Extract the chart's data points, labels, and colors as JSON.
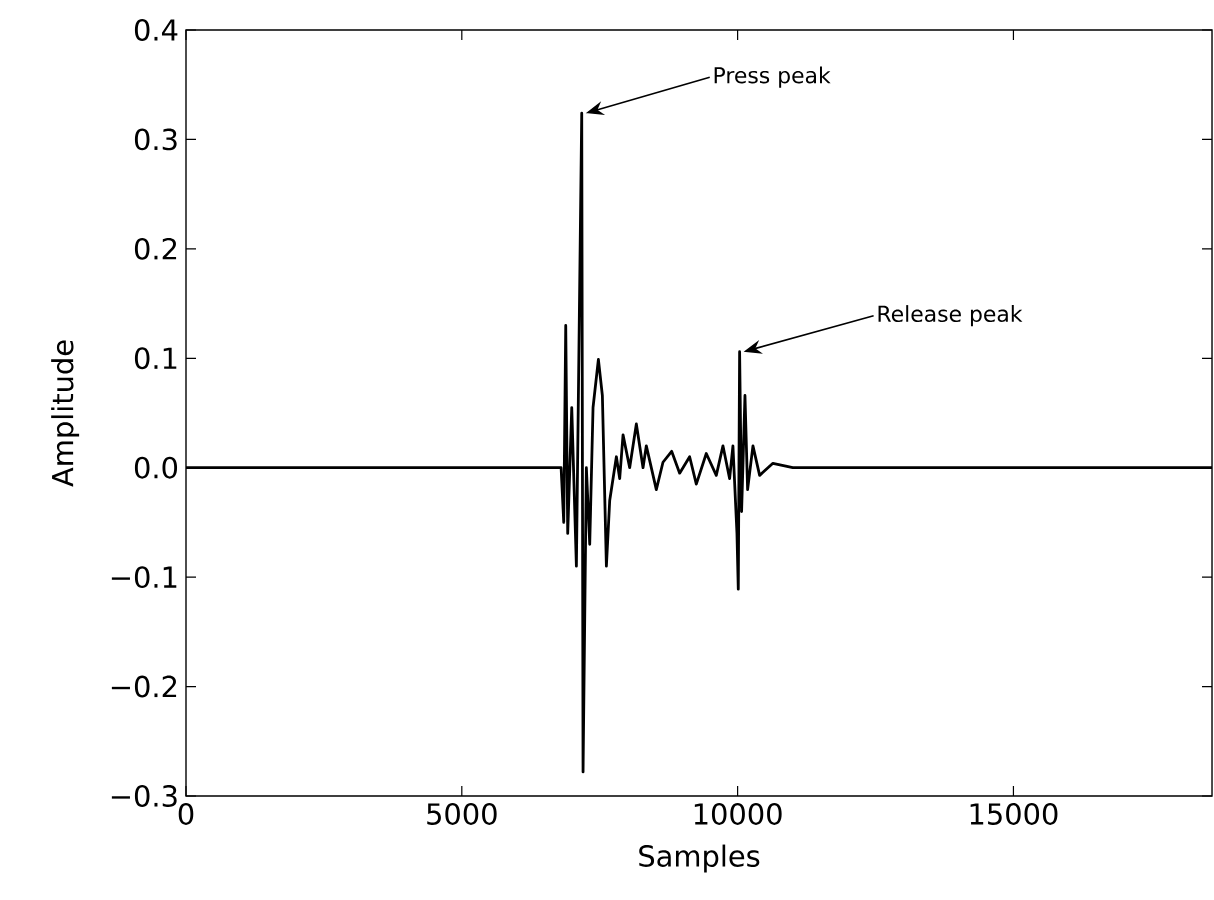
{
  "chart_data": {
    "type": "line",
    "xlabel": "Samples",
    "ylabel": "Amplitude",
    "annotations": [
      {
        "text": "Press peak",
        "x": 7174,
        "y": 0.324
      },
      {
        "text": "Release peak",
        "x": 10036,
        "y": 0.106
      }
    ],
    "series": [
      {
        "color": "#000000",
        "x": [
          0,
          1000,
          2000,
          3000,
          4000,
          5000,
          6000,
          6800,
          6848,
          6884,
          6920,
          6993,
          7077,
          7174,
          7198,
          7258,
          7319,
          7379,
          7476,
          7548,
          7621,
          7681,
          7802,
          7862,
          7923,
          8043,
          8164,
          8285,
          8345,
          8526,
          8647,
          8804,
          8949,
          9130,
          9251,
          9432,
          9613,
          9734,
          9855,
          9915,
          9988,
          10012,
          10036,
          10072,
          10133,
          10181,
          10278,
          10399,
          10640,
          11000,
          12000,
          13000,
          14000,
          15000,
          16000,
          17000,
          18000,
          18600
        ],
        "values": [
          0,
          0,
          0,
          0,
          0,
          0,
          0,
          0,
          -0.05,
          0.13,
          -0.06,
          0.055,
          -0.09,
          0.324,
          -0.278,
          0,
          -0.07,
          0.055,
          0.099,
          0.066,
          -0.09,
          -0.03,
          0.01,
          -0.01,
          0.03,
          0,
          0.04,
          0,
          0.02,
          -0.02,
          0.005,
          0.015,
          -0.005,
          0.01,
          -0.015,
          0.013,
          -0.007,
          0.02,
          -0.01,
          0.02,
          -0.06,
          -0.111,
          0.106,
          -0.04,
          0.066,
          -0.02,
          0.02,
          -0.007,
          0.004,
          0,
          0,
          0,
          0,
          0,
          0,
          0,
          0,
          0
        ]
      }
    ],
    "xlim": [
      0,
      18600
    ],
    "ylim": [
      -0.3,
      0.4
    ],
    "xticks": [
      0,
      5000,
      10000,
      15000
    ],
    "yticks": [
      {
        "value": -0.3,
        "label": "−0.3"
      },
      {
        "value": -0.2,
        "label": "−0.2"
      },
      {
        "value": -0.1,
        "label": "−0.1"
      },
      {
        "value": 0,
        "label": "0.0"
      },
      {
        "value": 0.1,
        "label": "0.1"
      },
      {
        "value": 0.2,
        "label": "0.2"
      },
      {
        "value": 0.3,
        "label": "0.3"
      },
      {
        "value": 0.4,
        "label": "0.4"
      }
    ],
    "grid": false,
    "marker": "none",
    "line_style": "solid"
  }
}
